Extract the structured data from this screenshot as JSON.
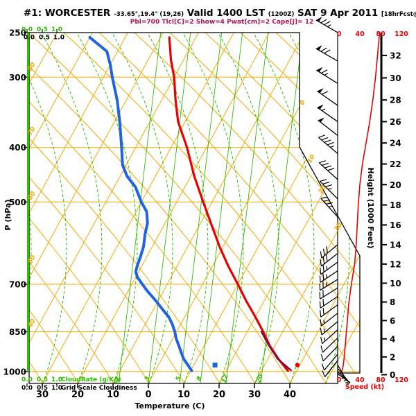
{
  "header": {
    "station_prefix": "#1: ",
    "station": "WORCESTER",
    "coords": "-33.65°,19.4° (19,26)",
    "valid": " Valid 1400 LST ",
    "valid_z": "(1200Z)",
    "date": " SAT 9 Apr 2011 ",
    "fcst": "[18hrFcst@2210z]"
  },
  "subtitle": "Pbl=700 Tlcl[C]=2 Show=4 Pwat[cm]=2 Cape[J]= 12",
  "colors": {
    "grid_orange": "#F5A800",
    "green": "#2FBE00",
    "temp_red": "#E80000",
    "dewpoint_blue": "#1F63E0",
    "parcel_maroon": "#6E1048",
    "magenta": "#B01356",
    "red": "#E80000",
    "black": "#000000"
  },
  "chart_data": {
    "type": "skewt_log_p",
    "pressure_axis": {
      "label": "P (hPa)",
      "tick_labels": [
        "250",
        "300",
        "400",
        "500",
        "700",
        "850",
        "1000"
      ],
      "tick_values": [
        250,
        300,
        400,
        500,
        700,
        850,
        1000
      ],
      "range_hpa": [
        250,
        1050
      ],
      "scale": "log"
    },
    "temperature_axis": {
      "label": "Temperature (C)",
      "tick_labels": [
        "30",
        "20",
        "10",
        "0",
        "10",
        "20",
        "30",
        "40"
      ],
      "tick_values": [
        -30,
        -20,
        -10,
        0,
        10,
        20,
        30,
        40
      ]
    },
    "isotherm_edge_labels_left": [
      "80",
      "70",
      "60",
      "50",
      "40"
    ],
    "isotherm_edge_labels_right": [
      "0",
      "10",
      "20",
      "30"
    ],
    "mixing_ratio_lines": {
      "labels": [
        "2",
        "3",
        "5",
        "8",
        "12",
        "20"
      ],
      "values_g_kg": [
        2,
        3,
        5,
        8,
        12,
        20
      ]
    },
    "height_axis": {
      "label": "Height (1000 Feet)",
      "tick_values": [
        0,
        2,
        4,
        6,
        8,
        10,
        12,
        14,
        16,
        18,
        20,
        22,
        24,
        26,
        28,
        30,
        32
      ],
      "unit": "1000 ft"
    },
    "speed_axis": {
      "label": "Speed (kt)",
      "tick_labels": [
        "0",
        "40",
        "80",
        "120"
      ],
      "tick_values": [
        0,
        40,
        80,
        120
      ]
    },
    "cloud_scale_green": {
      "tick_labels": [
        "0.0",
        "0.5",
        "1.0"
      ],
      "label": "CloudRate (g/Kg)"
    },
    "cloud_scale_black": {
      "tick_labels": [
        "0.0",
        "0.5",
        "1.0"
      ],
      "label": "Grid Scale Cloudiness"
    },
    "cloud_water_profile": {
      "constant_value": 0.0,
      "note": "green line on zero axis full depth"
    },
    "temperature_profile_C": [
      [
        255,
        -47.5
      ],
      [
        280,
        -43.5
      ],
      [
        300,
        -40
      ],
      [
        330,
        -36
      ],
      [
        360,
        -32
      ],
      [
        400,
        -25.5
      ],
      [
        450,
        -19
      ],
      [
        500,
        -12.5
      ],
      [
        550,
        -6.5
      ],
      [
        600,
        -1
      ],
      [
        650,
        4.5
      ],
      [
        700,
        10
      ],
      [
        750,
        15
      ],
      [
        800,
        20
      ],
      [
        850,
        24.5
      ],
      [
        900,
        28.5
      ],
      [
        950,
        33
      ],
      [
        997,
        37.5
      ]
    ],
    "dewpoint_profile_C": [
      [
        255,
        -70
      ],
      [
        270,
        -63
      ],
      [
        285,
        -60
      ],
      [
        300,
        -57.5
      ],
      [
        330,
        -52.5
      ],
      [
        360,
        -48.5
      ],
      [
        400,
        -44
      ],
      [
        430,
        -41
      ],
      [
        450,
        -38
      ],
      [
        470,
        -34
      ],
      [
        500,
        -30
      ],
      [
        520,
        -27
      ],
      [
        545,
        -25
      ],
      [
        570,
        -24
      ],
      [
        600,
        -22.5
      ],
      [
        625,
        -21.8
      ],
      [
        650,
        -21.3
      ],
      [
        665,
        -20.8
      ],
      [
        680,
        -19.5
      ],
      [
        700,
        -17
      ],
      [
        720,
        -14.5
      ],
      [
        750,
        -10.5
      ],
      [
        775,
        -7.5
      ],
      [
        800,
        -4.5
      ],
      [
        825,
        -2.3
      ],
      [
        850,
        -0.5
      ],
      [
        875,
        1
      ],
      [
        900,
        2.8
      ],
      [
        925,
        4.5
      ],
      [
        950,
        6.2
      ],
      [
        970,
        8
      ],
      [
        997,
        10.3
      ]
    ],
    "parcel_overlay_C": [
      [
        850,
        24
      ],
      [
        900,
        28.3
      ],
      [
        950,
        32.8
      ],
      [
        995,
        38.3
      ]
    ],
    "surface_markers": {
      "temperature_dot": {
        "p": 985,
        "t": 39.3
      },
      "dewpoint_square": {
        "p": 985,
        "t": 16
      }
    },
    "wind_speed_profile_kt": [
      [
        0.3,
        5
      ],
      [
        1,
        8
      ],
      [
        2,
        10
      ],
      [
        4,
        13
      ],
      [
        6,
        16
      ],
      [
        8,
        19
      ],
      [
        10,
        24
      ],
      [
        12,
        30
      ],
      [
        14,
        33
      ],
      [
        16,
        35
      ],
      [
        18,
        37
      ],
      [
        20,
        40
      ],
      [
        22,
        45
      ],
      [
        24,
        52
      ],
      [
        26,
        59
      ],
      [
        28,
        65
      ],
      [
        30,
        70
      ],
      [
        32,
        74
      ],
      [
        34,
        78
      ]
    ],
    "wind_barbs": [
      {
        "kft": 34,
        "dir": 300,
        "kt": 75
      },
      {
        "kft": 31.5,
        "dir": 300,
        "kt": 70
      },
      {
        "kft": 29.5,
        "dir": 302,
        "kt": 65
      },
      {
        "kft": 27.5,
        "dir": 305,
        "kt": 60
      },
      {
        "kft": 26,
        "dir": 305,
        "kt": 55
      },
      {
        "kft": 24.7,
        "dir": 308,
        "kt": 50
      },
      {
        "kft": 23,
        "dir": 310,
        "kt": 45
      },
      {
        "kft": 20.5,
        "dir": 312,
        "kt": 40
      },
      {
        "kft": 18.6,
        "dir": 315,
        "kt": 38
      },
      {
        "kft": 16.8,
        "dir": 318,
        "kt": 35
      },
      {
        "kft": 14,
        "dir": 230,
        "kt": 32
      },
      {
        "kft": 13.1,
        "dir": 232,
        "kt": 30
      },
      {
        "kft": 12.2,
        "dir": 234,
        "kt": 28
      },
      {
        "kft": 11.3,
        "dir": 236,
        "kt": 27
      },
      {
        "kft": 10.4,
        "dir": 238,
        "kt": 25
      },
      {
        "kft": 9.5,
        "dir": 238,
        "kt": 23
      },
      {
        "kft": 8.6,
        "dir": 236,
        "kt": 22
      },
      {
        "kft": 7.7,
        "dir": 234,
        "kt": 20
      },
      {
        "kft": 6.8,
        "dir": 232,
        "kt": 19
      },
      {
        "kft": 5.9,
        "dir": 230,
        "kt": 17
      },
      {
        "kft": 5,
        "dir": 228,
        "kt": 16
      },
      {
        "kft": 4.1,
        "dir": 226,
        "kt": 14
      },
      {
        "kft": 3.2,
        "dir": 224,
        "kt": 12
      },
      {
        "kft": 2.3,
        "dir": 220,
        "kt": 11
      },
      {
        "kft": 1.6,
        "dir": 218,
        "kt": 10
      },
      {
        "kft": 1.1,
        "dir": 150,
        "kt": 8
      },
      {
        "kft": 0.7,
        "dir": 140,
        "kt": 7
      },
      {
        "kft": 0.35,
        "dir": 132,
        "kt": 6
      },
      {
        "kft": 0.1,
        "dir": 125,
        "kt": 5
      }
    ]
  }
}
